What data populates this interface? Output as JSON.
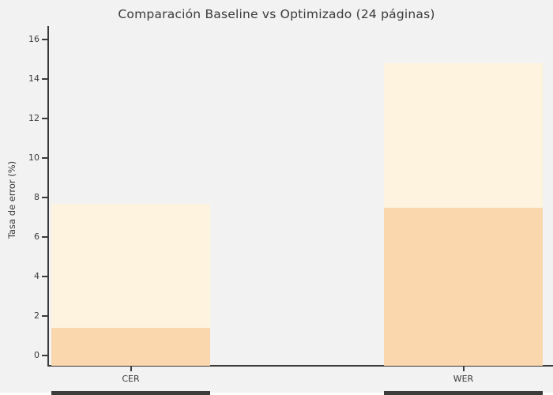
{
  "figure": {
    "title": "Comparación Baseline vs Optimizado (24 páginas)",
    "ylabel": "Tasa de error (%)"
  },
  "chart_data": {
    "type": "bar",
    "title": "Comparación Baseline vs Optimizado (24 páginas)",
    "xlabel": "",
    "ylabel": "Tasa de error (%)",
    "categories": [
      "CER",
      "WER"
    ],
    "series": [
      {
        "name": "Baseline",
        "values": [
          7.7,
          14.8
        ],
        "color": "#FDF3DE"
      },
      {
        "name": "Optimizado",
        "values": [
          1.4,
          7.5
        ],
        "color": "#FBD7AE"
      }
    ],
    "ylim": [
      0,
      16
    ],
    "yticks": [
      0,
      2,
      4,
      6,
      8,
      10,
      12,
      14,
      16
    ],
    "grid": false,
    "legend_position": "none",
    "bar_style": "overlapping-full-width"
  },
  "colors": {
    "background": "#F2F2F2",
    "axis": "#3A3A3A",
    "text": "#3A3A3A",
    "baseline_bar": "#FDF3DE",
    "optimizado_bar": "#FBD7AE",
    "bottom_strip_segment": "#3B3B3B",
    "bottom_strip_gap": "#FFFFFF"
  }
}
